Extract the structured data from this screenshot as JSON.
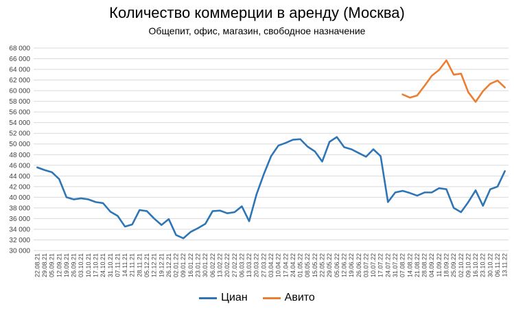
{
  "chart_data": {
    "type": "line",
    "title": "Количество коммерции в аренду (Москва)",
    "subtitle": "Общепит, офис, магазин, свободное назначение",
    "xlabel": "",
    "ylabel": "",
    "ylim": [
      30000,
      68000
    ],
    "ytick_step": 2000,
    "grid": "horizontal",
    "legend_position": "bottom",
    "categories": [
      "22.08.21",
      "29.08.21",
      "05.09.21",
      "12.09.21",
      "19.09.21",
      "26.09.21",
      "03.10.21",
      "10.10.21",
      "17.10.21",
      "24.10.21",
      "31.10.21",
      "07.11.21",
      "14.11.21",
      "21.11.21",
      "28.11.21",
      "05.12.21",
      "12.12.21",
      "19.12.21",
      "26.12.21",
      "02.01.22",
      "09.01.22",
      "16.01.22",
      "23.01.22",
      "30.01.22",
      "06.02.22",
      "13.02.22",
      "20.02.22",
      "27.02.22",
      "06.03.22",
      "13.03.22",
      "20.03.22",
      "27.03.22",
      "03.04.22",
      "10.04.22",
      "17.04.22",
      "24.04.22",
      "01.05.22",
      "08.05.22",
      "15.05.22",
      "22.05.22",
      "29.05.22",
      "05.06.22",
      "12.06.22",
      "19.06.22",
      "26.06.22",
      "03.07.22",
      "10.07.22",
      "17.07.22",
      "24.07.22",
      "31.07.22",
      "07.08.22",
      "14.08.22",
      "21.08.22",
      "28.08.22",
      "04.09.22",
      "11.09.22",
      "18.09.22",
      "25.09.22",
      "02.10.22",
      "09.10.22",
      "16.10.22",
      "23.10.22",
      "30.10.22",
      "06.11.22",
      "13.11.22"
    ],
    "series": [
      {
        "name": "Циан",
        "color": "#2E75B6",
        "values": [
          45600,
          45100,
          44700,
          43400,
          40000,
          39600,
          39800,
          39600,
          39100,
          38900,
          37300,
          36500,
          34500,
          34900,
          37600,
          37400,
          36000,
          34800,
          35900,
          32900,
          32300,
          33500,
          34200,
          35000,
          37400,
          37500,
          37000,
          37200,
          38300,
          35500,
          40500,
          44300,
          47700,
          49700,
          50200,
          50800,
          50900,
          49500,
          48600,
          46700,
          50400,
          51300,
          49400,
          49000,
          48300,
          47600,
          49000,
          47700,
          39100,
          40900,
          41200,
          40800,
          40300,
          40900,
          40900,
          41700,
          41500,
          38000,
          37200,
          39100,
          41300,
          38400,
          41500,
          42000,
          44900
        ]
      },
      {
        "name": "Авито",
        "color": "#ED7D31",
        "values": [
          null,
          null,
          null,
          null,
          null,
          null,
          null,
          null,
          null,
          null,
          null,
          null,
          null,
          null,
          null,
          null,
          null,
          null,
          null,
          null,
          null,
          null,
          null,
          null,
          null,
          null,
          null,
          null,
          null,
          null,
          null,
          null,
          null,
          null,
          null,
          null,
          null,
          null,
          null,
          null,
          null,
          null,
          null,
          null,
          null,
          null,
          null,
          null,
          null,
          null,
          59300,
          58700,
          59100,
          60900,
          62800,
          63900,
          65700,
          63000,
          63200,
          59700,
          57900,
          59900,
          61300,
          61900,
          60600
        ]
      }
    ]
  }
}
